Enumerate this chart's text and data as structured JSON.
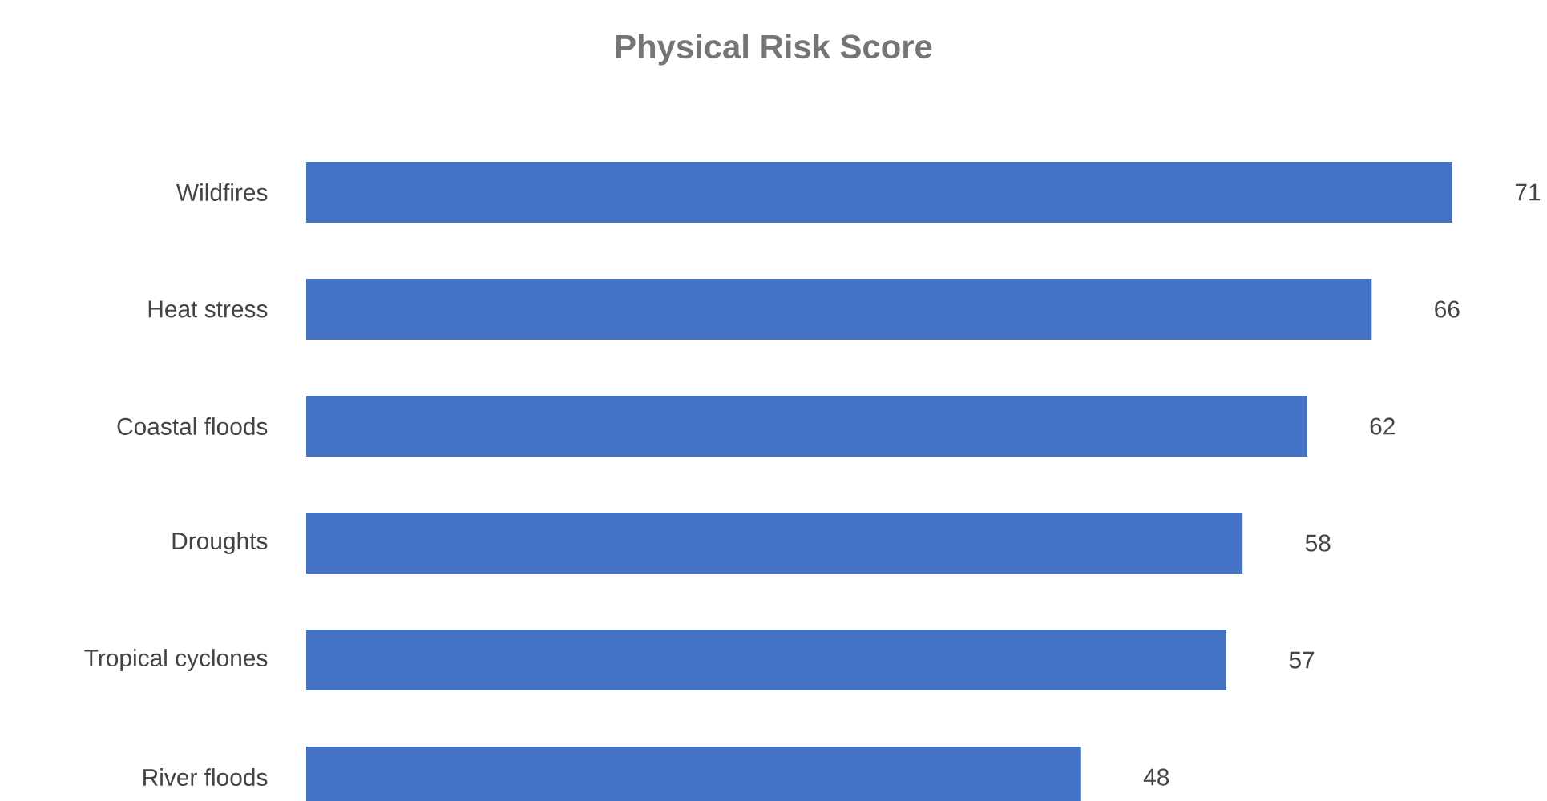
{
  "chart_data": {
    "type": "bar",
    "orientation": "horizontal",
    "title": "Physical Risk Score",
    "categories": [
      "Wildfires",
      "Heat stress",
      "Coastal floods",
      "Droughts",
      "Tropical cyclones",
      "River floods"
    ],
    "values": [
      71,
      66,
      62,
      58,
      57,
      48
    ],
    "color": "#4472c4",
    "data_labels": true
  }
}
